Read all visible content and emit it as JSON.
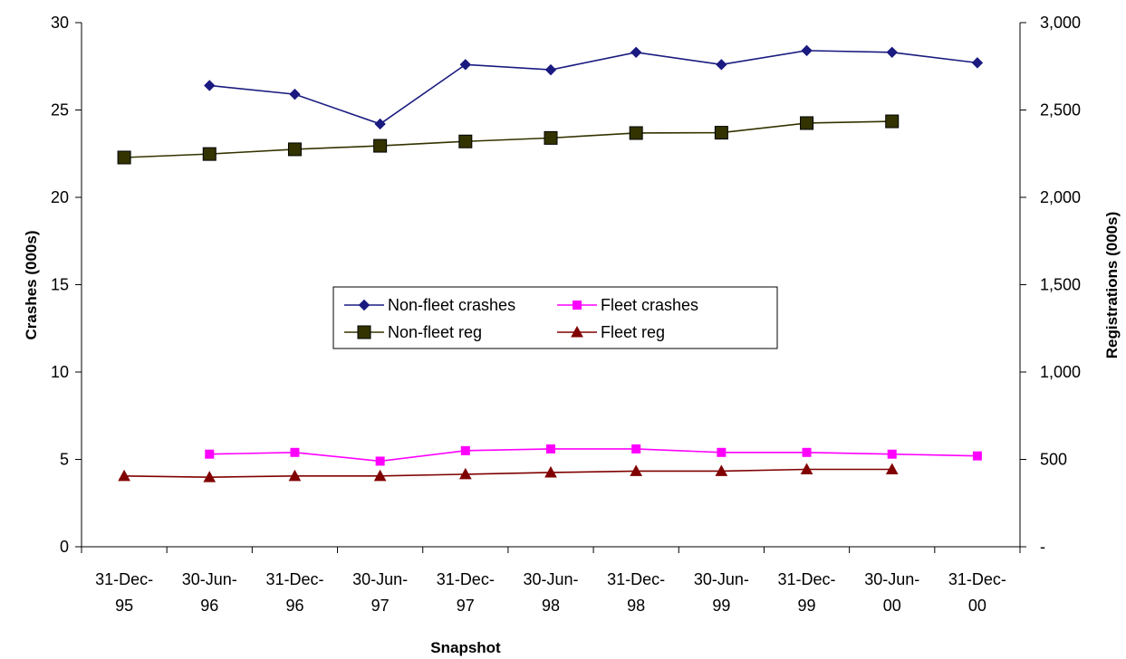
{
  "chart_data": {
    "type": "line",
    "xlabel": "Snapshot",
    "ylabel": "Crashes (000s)",
    "y2label": "Registrations (000s)",
    "categories": [
      [
        "31-Dec-",
        "95"
      ],
      [
        "30-Jun-",
        "96"
      ],
      [
        "31-Dec-",
        "96"
      ],
      [
        "30-Jun-",
        "97"
      ],
      [
        "31-Dec-",
        "97"
      ],
      [
        "30-Jun-",
        "98"
      ],
      [
        "31-Dec-",
        "98"
      ],
      [
        "30-Jun-",
        "99"
      ],
      [
        "31-Dec-",
        "99"
      ],
      [
        "30-Jun-",
        "00"
      ],
      [
        "31-Dec-",
        "00"
      ]
    ],
    "ylim": [
      0,
      30
    ],
    "yticks": [
      "0",
      "5",
      "10",
      "15",
      "20",
      "25",
      "30"
    ],
    "y2lim": [
      0,
      3000
    ],
    "y2ticks": [
      "-",
      "500",
      "1,000",
      "1,500",
      "2,000",
      "2,500",
      "3,000"
    ],
    "grid": false,
    "legend_position": "center",
    "series": [
      {
        "name": "Non-fleet crashes",
        "axis": "left",
        "color": "#1a1a80",
        "marker": "diamond",
        "values": [
          null,
          26.4,
          25.9,
          24.2,
          27.6,
          27.3,
          28.3,
          27.6,
          28.4,
          28.3,
          27.7
        ]
      },
      {
        "name": "Fleet crashes",
        "axis": "left",
        "color": "#ff00ff",
        "marker": "square",
        "values": [
          null,
          5.3,
          5.4,
          4.9,
          5.5,
          5.6,
          5.6,
          5.4,
          5.4,
          5.3,
          5.2
        ]
      },
      {
        "name": "Non-fleet reg",
        "axis": "right",
        "color": "#333300",
        "marker": "big-square",
        "values": [
          2228,
          2248,
          2275,
          2295,
          2320,
          2340,
          2368,
          2370,
          2425,
          2435,
          null
        ]
      },
      {
        "name": "Fleet reg",
        "axis": "right",
        "color": "#800000",
        "marker": "triangle",
        "values": [
          405,
          398,
          405,
          405,
          415,
          425,
          433,
          433,
          443,
          443,
          null
        ]
      }
    ]
  }
}
